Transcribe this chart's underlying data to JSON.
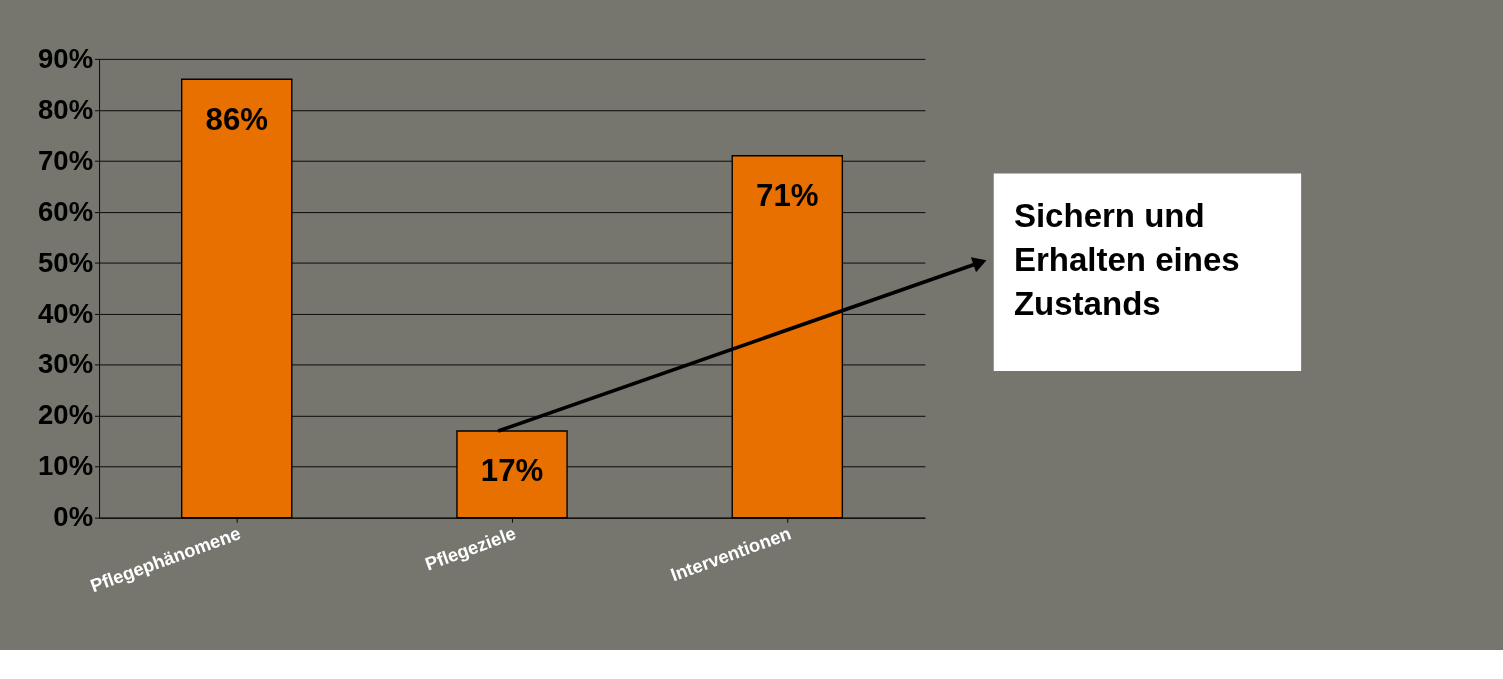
{
  "chart_data": {
    "type": "bar",
    "categories": [
      "Pflegephänomene",
      "Pflegeziele",
      "Interventionen"
    ],
    "values": [
      86,
      17,
      71
    ],
    "color": "#e87000",
    "value_labels": [
      "86%",
      "17%",
      "71%"
    ],
    "ylim": [
      0,
      90
    ],
    "yticks": [
      {
        "value": 0,
        "label": "0%"
      },
      {
        "value": 10,
        "label": "10%"
      },
      {
        "value": 20,
        "label": "20%"
      },
      {
        "value": 30,
        "label": "30%"
      },
      {
        "value": 40,
        "label": "40%"
      },
      {
        "value": 50,
        "label": "50%"
      },
      {
        "value": 60,
        "label": "60%"
      },
      {
        "value": 70,
        "label": "70%"
      },
      {
        "value": 80,
        "label": "80%"
      },
      {
        "value": 90,
        "label": "90%"
      }
    ],
    "grid": "y",
    "annotations": [
      "Sichern und Erhalten eines Zustands"
    ]
  }
}
